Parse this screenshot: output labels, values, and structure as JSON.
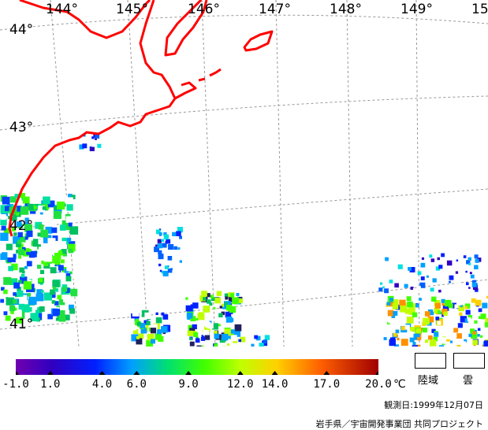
{
  "map": {
    "longitude_labels": [
      "144°",
      "145°",
      "146°",
      "147°",
      "148°",
      "149°",
      "15"
    ],
    "latitude_labels": [
      "44°",
      "43°",
      "42°",
      "41°"
    ]
  },
  "colorbar": {
    "tick_labels": [
      "-1.0",
      "1.0",
      "4.0",
      "6.0",
      "9.0",
      "12.0",
      "14.0",
      "17.0",
      "20.0"
    ],
    "tick_values": [
      -1,
      1,
      4,
      6,
      9,
      12,
      14,
      17,
      20
    ],
    "range": [
      -1,
      20
    ],
    "unit": "℃"
  },
  "legend": {
    "land_label": "陸域",
    "cloud_label": "雲",
    "land_color": "#ffffff",
    "cloud_color": "#ffffff"
  },
  "footer": {
    "observation_date": "観測日:1999年12月07日",
    "credit": "岩手県／宇宙開発事業団 共同プロジェクト"
  },
  "colors": {
    "coastline": "#ff0000",
    "grid": "#999999"
  }
}
